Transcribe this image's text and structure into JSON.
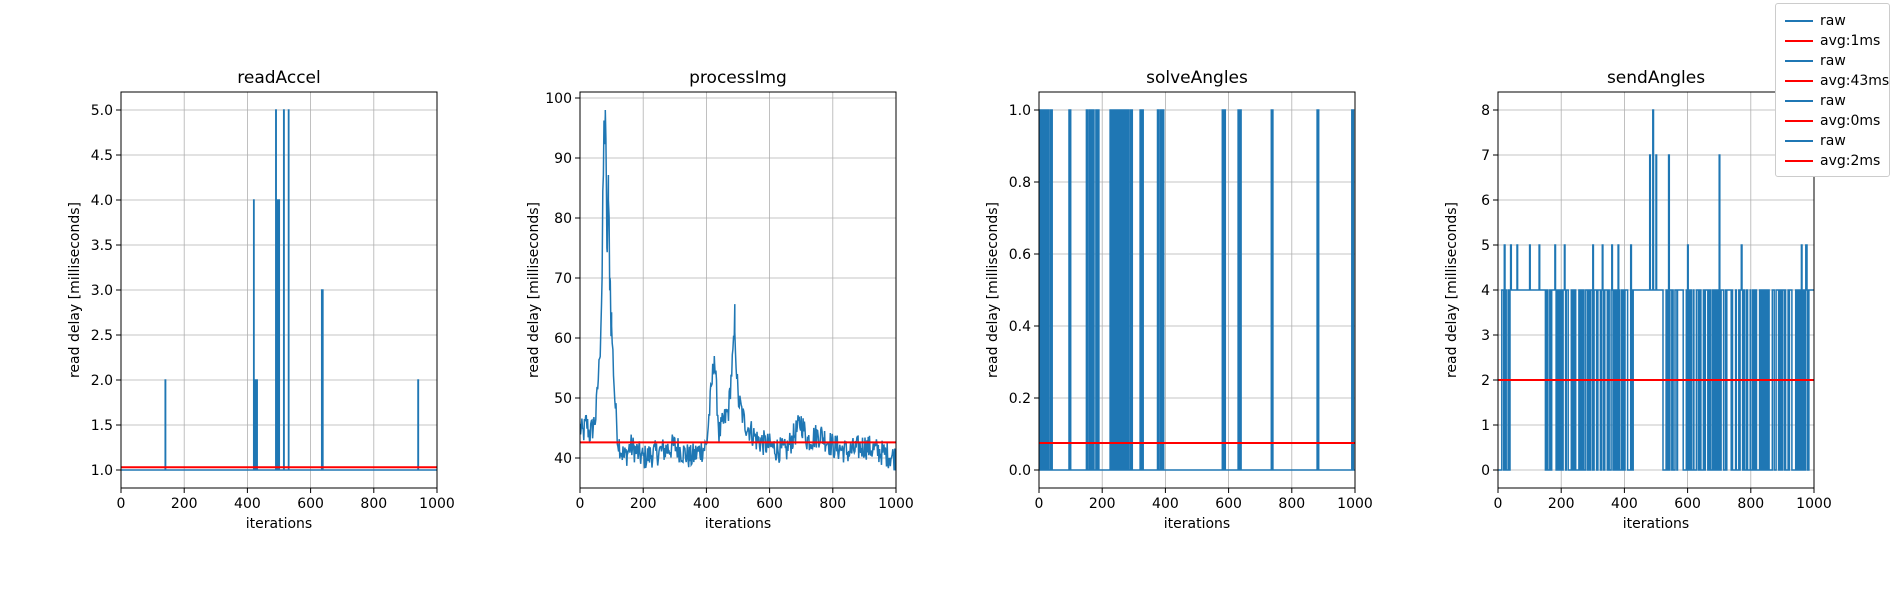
{
  "colors": {
    "raw": "#1f77b4",
    "avg": "#ff0000",
    "grid": "#b0b0b0"
  },
  "chart_data": [
    {
      "type": "line",
      "title": "readAccel",
      "xlabel": "iterations",
      "ylabel": "read delay [milliseconds]",
      "xlim": [
        0,
        1000
      ],
      "ylim": [
        0.8,
        5.2
      ],
      "xticks": [
        0,
        200,
        400,
        600,
        800,
        1000
      ],
      "yticks": [
        1.0,
        1.5,
        2.0,
        2.5,
        3.0,
        3.5,
        4.0,
        4.5,
        5.0
      ],
      "ytick_labels": [
        "1.0",
        "1.5",
        "2.0",
        "2.5",
        "3.0",
        "3.5",
        "4.0",
        "4.5",
        "5.0"
      ],
      "grid": true,
      "series": [
        {
          "name": "raw",
          "kind": "sparse_spikes",
          "base": 1,
          "spikes": [
            [
              140,
              2
            ],
            [
              420,
              4
            ],
            [
              425,
              2
            ],
            [
              430,
              2
            ],
            [
              490,
              5
            ],
            [
              495,
              4
            ],
            [
              500,
              4
            ],
            [
              515,
              5
            ],
            [
              530,
              5
            ],
            [
              635,
              3
            ],
            [
              638,
              3
            ],
            [
              940,
              2
            ]
          ]
        },
        {
          "name": "avg:1ms",
          "kind": "hline",
          "value": 1.03
        }
      ]
    },
    {
      "type": "line",
      "title": "processImg",
      "xlabel": "iterations",
      "ylabel": "read delay [milliseconds]",
      "xlim": [
        0,
        1000
      ],
      "ylim": [
        35,
        101
      ],
      "xticks": [
        0,
        200,
        400,
        600,
        800,
        1000
      ],
      "yticks": [
        40,
        50,
        60,
        70,
        80,
        90,
        100
      ],
      "ytick_labels": [
        "40",
        "50",
        "60",
        "70",
        "80",
        "90",
        "100"
      ],
      "grid": true,
      "series": [
        {
          "name": "raw",
          "kind": "profile",
          "points": [
            [
              0,
              45
            ],
            [
              10,
              44
            ],
            [
              20,
              46
            ],
            [
              30,
              44
            ],
            [
              40,
              45
            ],
            [
              50,
              47
            ],
            [
              60,
              55
            ],
            [
              70,
              70
            ],
            [
              75,
              92
            ],
            [
              80,
              98
            ],
            [
              85,
              75
            ],
            [
              90,
              83
            ],
            [
              95,
              70
            ],
            [
              100,
              62
            ],
            [
              110,
              50
            ],
            [
              120,
              43
            ],
            [
              140,
              40
            ],
            [
              160,
              42
            ],
            [
              200,
              40
            ],
            [
              250,
              41
            ],
            [
              300,
              42
            ],
            [
              350,
              40
            ],
            [
              400,
              42
            ],
            [
              425,
              57
            ],
            [
              440,
              44
            ],
            [
              470,
              48
            ],
            [
              490,
              61
            ],
            [
              500,
              50
            ],
            [
              520,
              46
            ],
            [
              560,
              43
            ],
            [
              600,
              42
            ],
            [
              650,
              41
            ],
            [
              700,
              46
            ],
            [
              720,
              43
            ],
            [
              760,
              44
            ],
            [
              800,
              42
            ],
            [
              850,
              41
            ],
            [
              900,
              42
            ],
            [
              950,
              41
            ],
            [
              1000,
              40
            ]
          ]
        },
        {
          "name": "avg:43ms",
          "kind": "hline",
          "value": 42.6
        }
      ]
    },
    {
      "type": "line",
      "title": "solveAngles",
      "xlabel": "iterations",
      "ylabel": "read delay [milliseconds]",
      "xlim": [
        0,
        1000
      ],
      "ylim": [
        -0.05,
        1.05
      ],
      "xticks": [
        0,
        200,
        400,
        600,
        800,
        1000
      ],
      "yticks": [
        0.0,
        0.2,
        0.4,
        0.6,
        0.8,
        1.0
      ],
      "ytick_labels": [
        "0.0",
        "0.2",
        "0.4",
        "0.6",
        "0.8",
        "1.0"
      ],
      "grid": true,
      "series": [
        {
          "name": "raw",
          "kind": "binary_blocks",
          "low": 0,
          "high": 1,
          "blocks": [
            [
              0,
              5
            ],
            [
              8,
              12
            ],
            [
              15,
              20
            ],
            [
              25,
              30
            ],
            [
              35,
              42
            ],
            [
              95,
              100
            ],
            [
              150,
              155
            ],
            [
              160,
              175
            ],
            [
              180,
              190
            ],
            [
              225,
              230
            ],
            [
              232,
              240
            ],
            [
              245,
              255
            ],
            [
              258,
              270
            ],
            [
              272,
              285
            ],
            [
              290,
              295
            ],
            [
              320,
              330
            ],
            [
              375,
              380
            ],
            [
              385,
              395
            ],
            [
              580,
              590
            ],
            [
              630,
              640
            ],
            [
              735,
              740
            ],
            [
              880,
              885
            ],
            [
              990,
              995
            ]
          ]
        },
        {
          "name": "avg:0ms",
          "kind": "hline",
          "value": 0.075
        }
      ]
    },
    {
      "type": "line",
      "title": "sendAngles",
      "xlabel": "iterations",
      "ylabel": "read delay [milliseconds]",
      "xlim": [
        0,
        1000
      ],
      "ylim": [
        -0.4,
        8.4
      ],
      "xticks": [
        0,
        200,
        400,
        600,
        800,
        1000
      ],
      "yticks": [
        0,
        1,
        2,
        3,
        4,
        5,
        6,
        7,
        8
      ],
      "ytick_labels": [
        "0",
        "1",
        "2",
        "3",
        "4",
        "5",
        "6",
        "7",
        "8"
      ],
      "grid": true,
      "series": [
        {
          "name": "raw",
          "kind": "noisy_steps",
          "base": 4,
          "low": 0,
          "dense_ranges": [
            [
              0,
              40
            ],
            [
              150,
              440
            ],
            [
              520,
              1000
            ]
          ],
          "spikes": [
            [
              20,
              5
            ],
            [
              40,
              5
            ],
            [
              60,
              5
            ],
            [
              100,
              5
            ],
            [
              130,
              5
            ],
            [
              180,
              5
            ],
            [
              210,
              5
            ],
            [
              300,
              5
            ],
            [
              330,
              5
            ],
            [
              360,
              5
            ],
            [
              380,
              5
            ],
            [
              420,
              5
            ],
            [
              480,
              7
            ],
            [
              490,
              8
            ],
            [
              500,
              7
            ],
            [
              540,
              7
            ],
            [
              600,
              5
            ],
            [
              700,
              7
            ],
            [
              770,
              5
            ],
            [
              960,
              5
            ],
            [
              975,
              5
            ]
          ]
        },
        {
          "name": "avg:2ms",
          "kind": "hline",
          "value": 2.0
        }
      ]
    }
  ],
  "legend": {
    "position": "top-right",
    "entries": [
      {
        "label": "raw",
        "color": "#1f77b4"
      },
      {
        "label": "avg:1ms",
        "color": "#ff0000"
      },
      {
        "label": "raw",
        "color": "#1f77b4"
      },
      {
        "label": "avg:43ms",
        "color": "#ff0000"
      },
      {
        "label": "raw",
        "color": "#1f77b4"
      },
      {
        "label": "avg:0ms",
        "color": "#ff0000"
      },
      {
        "label": "raw",
        "color": "#1f77b4"
      },
      {
        "label": "avg:2ms",
        "color": "#ff0000"
      }
    ]
  }
}
